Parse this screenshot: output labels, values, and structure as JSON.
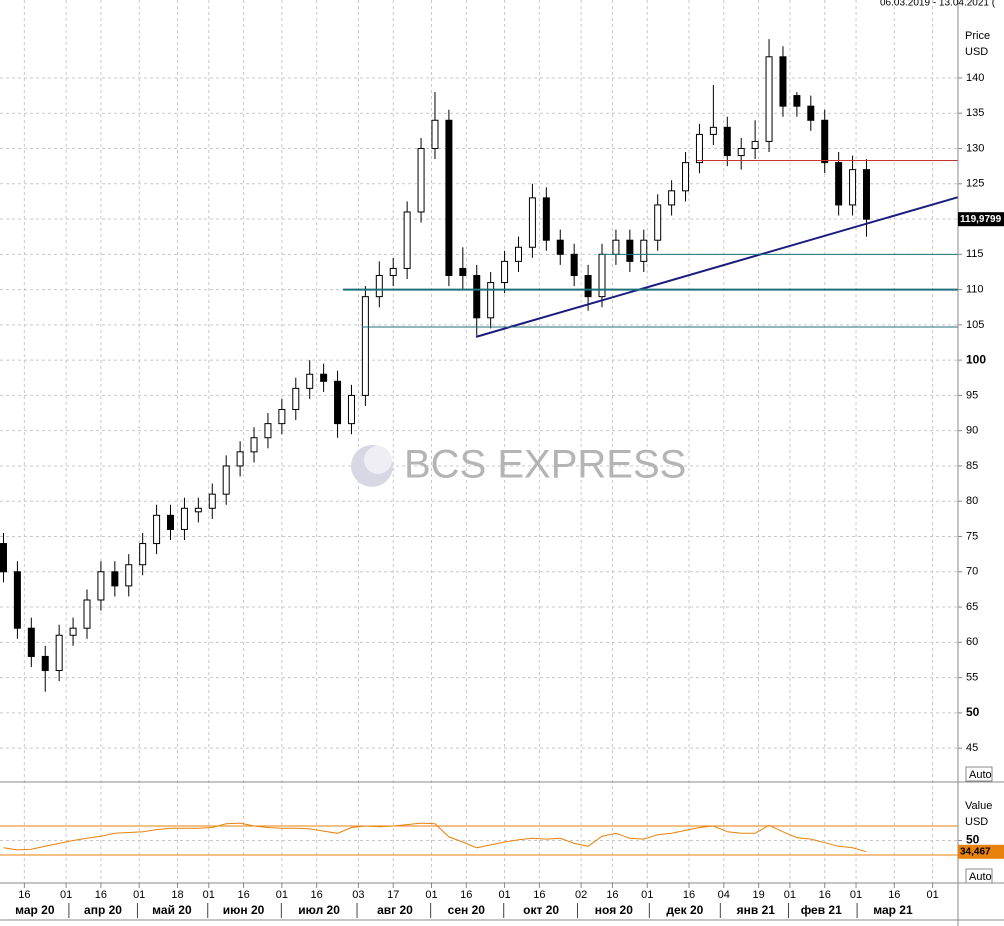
{
  "chart_data": [
    {
      "type": "candlestick",
      "header": "06.03.2019 - 13.04.2021 (",
      "y_axis_label": "Price",
      "y_axis_unit": "USD",
      "watermark": "BCS EXPRESS",
      "button": "Auto",
      "xlim": [
        -4,
        271.3
      ],
      "ylim": [
        40.2,
        151.05
      ],
      "yticks": [
        45,
        50,
        55,
        60,
        65,
        70,
        75,
        80,
        85,
        90,
        95,
        100,
        105,
        110,
        115,
        120,
        125,
        130,
        135,
        140
      ],
      "grid": true,
      "x": [
        -3,
        1,
        5,
        9,
        13,
        17,
        21,
        25,
        29,
        33,
        37,
        41,
        45,
        49,
        53,
        57,
        61,
        65,
        69,
        73,
        77,
        81,
        85,
        89,
        93,
        97,
        101,
        105,
        109,
        113,
        117,
        121,
        125,
        129,
        133,
        137,
        141,
        145,
        149,
        153,
        157,
        161,
        165,
        169,
        173,
        177,
        181,
        185,
        189,
        193,
        197,
        201,
        205,
        209,
        213,
        217,
        221,
        225,
        229,
        233,
        237,
        241,
        245
      ],
      "open": [
        74,
        70,
        62,
        58,
        56,
        61,
        62,
        66,
        70,
        68,
        71,
        74,
        78,
        76,
        78.5,
        79,
        81,
        85,
        87,
        89,
        91,
        93,
        96,
        98,
        97,
        91,
        95,
        109,
        112,
        113,
        121,
        130,
        134,
        113,
        112,
        106,
        111,
        114,
        116,
        123,
        117,
        115,
        112,
        109,
        115,
        117,
        114,
        117,
        122,
        124,
        128,
        132,
        133,
        129,
        130,
        131,
        143,
        137.5,
        136,
        134,
        128,
        122,
        127
      ],
      "high": [
        75.5,
        71.5,
        63.5,
        59.5,
        62.5,
        63.5,
        67.5,
        71.5,
        71.5,
        72.5,
        75.5,
        79.5,
        79.5,
        80.5,
        80.5,
        82.5,
        86.5,
        88.5,
        90.5,
        92.5,
        94.5,
        97.5,
        100,
        99.5,
        98.5,
        96.5,
        110.5,
        114,
        114.5,
        122.5,
        131.5,
        138,
        135.5,
        116,
        113.5,
        112.5,
        115.5,
        117.5,
        125,
        124.5,
        118.5,
        116.5,
        113.5,
        116.5,
        118.5,
        118.5,
        118.5,
        123.5,
        125.5,
        129.5,
        133.5,
        139,
        134.5,
        131.5,
        134,
        145.5,
        144.5,
        138,
        137.5,
        135.5,
        129.5,
        129,
        128.5
      ],
      "low": [
        68.5,
        60.5,
        56.5,
        53,
        54.5,
        59.5,
        60.5,
        64.5,
        66.5,
        66.5,
        69.5,
        72.5,
        74.5,
        74.5,
        77,
        77.5,
        79.5,
        83.5,
        85.5,
        87.5,
        89.5,
        91.5,
        94.5,
        95.5,
        89,
        89.5,
        93.5,
        107.5,
        110.5,
        111.5,
        119.5,
        128.5,
        110.5,
        110,
        103.5,
        104.5,
        109.5,
        112.5,
        114.5,
        115.5,
        113.5,
        110.5,
        107,
        107.5,
        113.5,
        112.5,
        112.5,
        115.5,
        120.5,
        122.5,
        126.5,
        130.5,
        127.5,
        127,
        128.5,
        129.5,
        134.5,
        134.5,
        132.5,
        126.5,
        120.5,
        120.5,
        117.5
      ],
      "close": [
        70,
        62,
        58,
        56,
        61,
        62,
        66,
        70,
        68,
        71,
        74,
        78,
        76,
        79,
        79,
        81,
        85,
        87,
        89,
        91,
        93,
        96,
        98,
        97,
        91,
        95,
        109,
        112,
        113,
        121,
        130,
        134,
        112,
        112,
        106,
        111,
        114,
        116,
        123,
        117,
        115,
        112,
        109,
        115,
        117,
        114,
        117,
        122,
        124,
        128,
        132,
        133,
        129,
        130,
        131,
        143,
        136,
        136,
        134,
        128,
        122,
        127,
        119.9799
      ],
      "last_value_label": "119,9799",
      "lines": [
        {
          "x": [
            132.8,
            271.3
          ],
          "y": [
            103.3,
            123.1
          ],
          "color": "#1c1c80",
          "width": 2
        },
        {
          "x": [
            196.3,
            271.3
          ],
          "y": [
            128.3,
            128.3
          ],
          "color": "#c83232",
          "width": 1
        },
        {
          "x": [
            168.4,
            271.3
          ],
          "y": [
            115,
            115
          ],
          "color": "#1f6f7a",
          "width": 1
        },
        {
          "x": [
            94.6,
            271.3
          ],
          "y": [
            110,
            110
          ],
          "color": "#1f6f7a",
          "width": 2
        },
        {
          "x": [
            100,
            271.3
          ],
          "y": [
            104.7,
            104.7
          ],
          "color": "#1f6f7a",
          "width": 1
        }
      ]
    },
    {
      "type": "line",
      "y_axis_label": "Value",
      "y_axis_unit": "USD",
      "button": "Auto",
      "color": "#e8820c",
      "xlim": [
        -4,
        271.3
      ],
      "ylim": [
        -8.6,
        130.7
      ],
      "yticks": [
        50
      ],
      "levels": [
        30,
        70
      ],
      "grid": true,
      "x": [
        -3,
        1,
        5,
        9,
        13,
        17,
        21,
        25,
        29,
        33,
        37,
        41,
        45,
        49,
        53,
        57,
        61,
        65,
        69,
        73,
        77,
        81,
        85,
        89,
        93,
        97,
        101,
        105,
        109,
        113,
        117,
        121,
        125,
        129,
        133,
        137,
        141,
        145,
        149,
        153,
        157,
        161,
        165,
        169,
        173,
        177,
        181,
        185,
        189,
        193,
        197,
        201,
        205,
        209,
        213,
        217,
        221,
        225,
        229,
        233,
        237,
        241,
        245
      ],
      "values": [
        40,
        37,
        38,
        42,
        46,
        50,
        53,
        56,
        60,
        61,
        62,
        65,
        67,
        67,
        67,
        68,
        73,
        74,
        70,
        68,
        67,
        67,
        66,
        63,
        60,
        68,
        70,
        69,
        70,
        72,
        74,
        73,
        55,
        48,
        40,
        44,
        48,
        51,
        53,
        52,
        53,
        46,
        42,
        56,
        60,
        53,
        52,
        58,
        60,
        64,
        68,
        70,
        62,
        60,
        60,
        71,
        62,
        54,
        52,
        47,
        42,
        40,
        34.467
      ],
      "last_value_label": "34,467",
      "xticks": [
        {
          "value": 3,
          "label": "16"
        },
        {
          "value": 15,
          "label": "01"
        },
        {
          "value": 25,
          "label": "16"
        },
        {
          "value": 36,
          "label": "01"
        },
        {
          "value": 47,
          "label": "18"
        },
        {
          "value": 56,
          "label": "01"
        },
        {
          "value": 66,
          "label": "16"
        },
        {
          "value": 77,
          "label": "01"
        },
        {
          "value": 87,
          "label": "16"
        },
        {
          "value": 99,
          "label": "03"
        },
        {
          "value": 109,
          "label": "17"
        },
        {
          "value": 120,
          "label": "01"
        },
        {
          "value": 130,
          "label": "16"
        },
        {
          "value": 141,
          "label": "01"
        },
        {
          "value": 151,
          "label": "16"
        },
        {
          "value": 163,
          "label": "02"
        },
        {
          "value": 172,
          "label": "16"
        },
        {
          "value": 182,
          "label": "01"
        },
        {
          "value": 194,
          "label": "16"
        },
        {
          "value": 204,
          "label": "04"
        },
        {
          "value": 214,
          "label": "19"
        },
        {
          "value": 223,
          "label": "01"
        },
        {
          "value": 233,
          "label": "16"
        },
        {
          "value": 242,
          "label": "01"
        },
        {
          "value": 253,
          "label": "16"
        },
        {
          "value": 264,
          "label": "01"
        }
      ],
      "month_ticks": [
        {
          "value": 6,
          "label": "мар 20"
        },
        {
          "value": 25.6,
          "label": "апр 20"
        },
        {
          "value": 45.4,
          "label": "май 20"
        },
        {
          "value": 66,
          "label": "июн 20"
        },
        {
          "value": 87.7,
          "label": "июл 20"
        },
        {
          "value": 109.5,
          "label": "авг 20"
        },
        {
          "value": 130,
          "label": "сен 20"
        },
        {
          "value": 151.5,
          "label": "окт 20"
        },
        {
          "value": 172.4,
          "label": "ноя 20"
        },
        {
          "value": 192.8,
          "label": "дек 20"
        },
        {
          "value": 213.2,
          "label": "янв 21"
        },
        {
          "value": 232,
          "label": "фев 21"
        },
        {
          "value": 252.6,
          "label": "мар 21"
        }
      ]
    }
  ]
}
